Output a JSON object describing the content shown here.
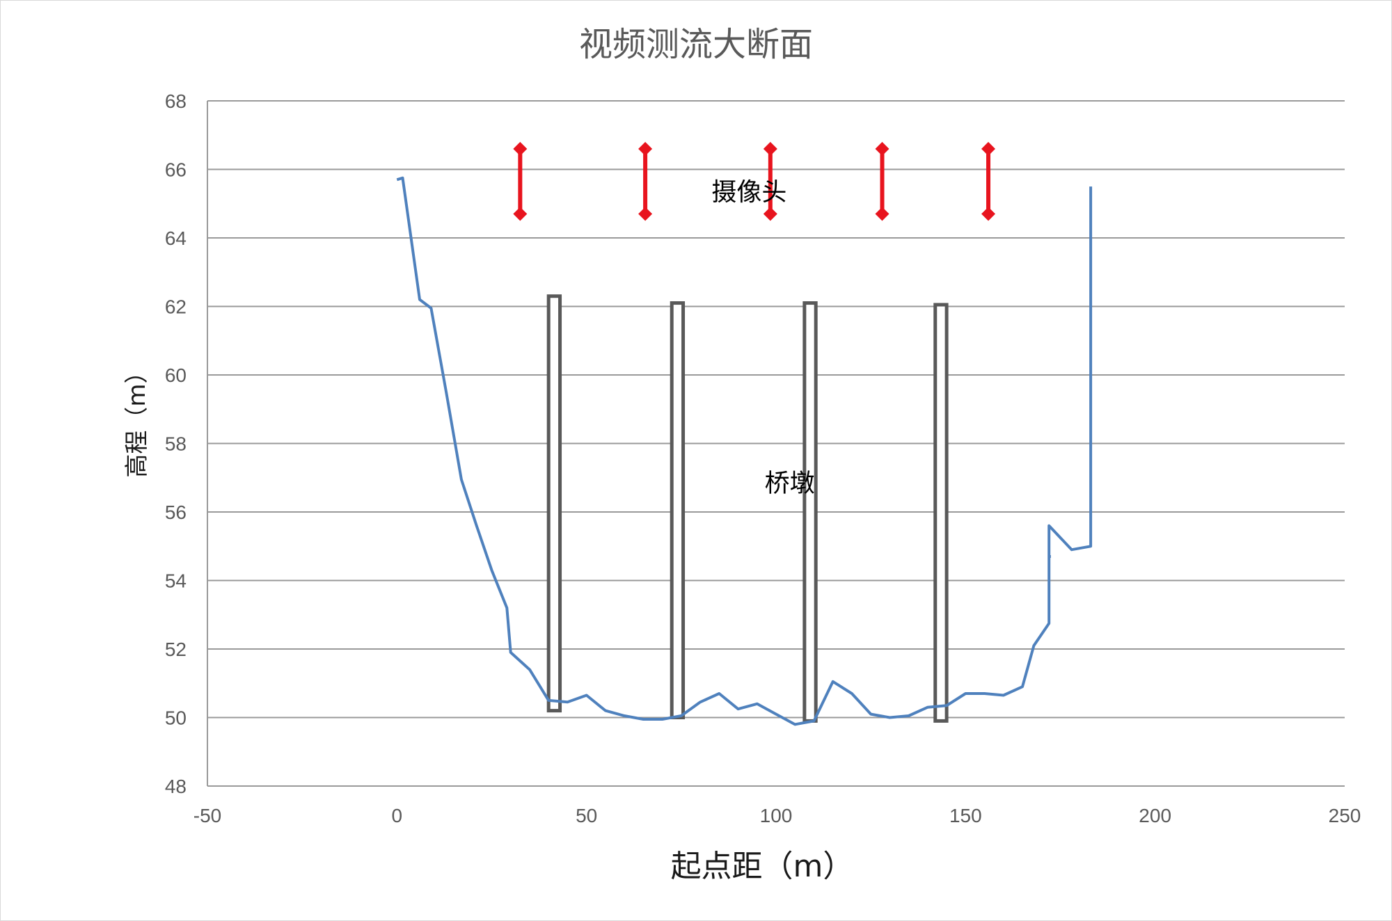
{
  "chart_data": {
    "type": "line",
    "title": "视频测流大断面",
    "xlabel": "起点距（m）",
    "ylabel": "高程（m）",
    "xlim": [
      -50,
      250
    ],
    "ylim": [
      48,
      68
    ],
    "x_ticks": [
      -50,
      0,
      50,
      100,
      150,
      200,
      250
    ],
    "y_ticks": [
      48,
      50,
      52,
      54,
      56,
      58,
      60,
      62,
      64,
      66,
      68
    ],
    "x_tick_labels": [
      "-50",
      "0",
      "50",
      "100",
      "150",
      "200",
      "250"
    ],
    "y_tick_labels": [
      "48",
      "50",
      "52",
      "54",
      "56",
      "58",
      "60",
      "62",
      "64",
      "66",
      "68"
    ],
    "grid": "horizontal",
    "legend": "none",
    "colors": {
      "profile": "#4f81bd",
      "camera": "#e8141e",
      "pier": "#595959",
      "grid": "#999999"
    },
    "profile": {
      "x": [
        0,
        1.5,
        6,
        9,
        13,
        17,
        21,
        25,
        29,
        30,
        35,
        40,
        45,
        50,
        55,
        60,
        65,
        70,
        75,
        80,
        85,
        90,
        95,
        100,
        105,
        110,
        115,
        120,
        125,
        130,
        135,
        140,
        145,
        150,
        155,
        160,
        165,
        168,
        172,
        172,
        178,
        183,
        183
      ],
      "y": [
        65.7,
        65.75,
        62.2,
        61.95,
        59.5,
        56.95,
        55.6,
        54.3,
        53.2,
        51.9,
        51.4,
        50.5,
        50.45,
        50.65,
        50.2,
        50.05,
        49.95,
        49.95,
        50.05,
        50.45,
        50.7,
        50.25,
        50.4,
        50.1,
        49.8,
        49.9,
        51.05,
        50.7,
        50.1,
        50.0,
        50.05,
        50.3,
        50.35,
        50.7,
        50.7,
        50.65,
        50.9,
        52.1,
        52.75,
        55.6,
        54.9,
        55.0,
        65.5
      ]
    },
    "profile_extra_segment": {
      "x": [
        172,
        172.5
      ],
      "y": [
        54.7,
        54.7
      ]
    },
    "cameras": {
      "label": "摄像头",
      "x": [
        32.5,
        65.5,
        98.5,
        128,
        156
      ],
      "y_top": 66.6,
      "y_bottom": 64.7
    },
    "piers": {
      "label": "桥墩",
      "items": [
        {
          "x_left": 40,
          "x_right": 43,
          "y_top": 62.3,
          "y_bottom": 50.2
        },
        {
          "x_left": 72.5,
          "x_right": 75.5,
          "y_top": 62.1,
          "y_bottom": 50.0
        },
        {
          "x_left": 107.5,
          "x_right": 110.5,
          "y_top": 62.1,
          "y_bottom": 49.9
        },
        {
          "x_left": 142,
          "x_right": 145,
          "y_top": 62.05,
          "y_bottom": 49.9
        }
      ]
    },
    "annotations": [
      {
        "text": "摄像头",
        "x": 83,
        "y": 65.1
      },
      {
        "text": "桥墩",
        "x": 97,
        "y": 56.6
      }
    ]
  }
}
